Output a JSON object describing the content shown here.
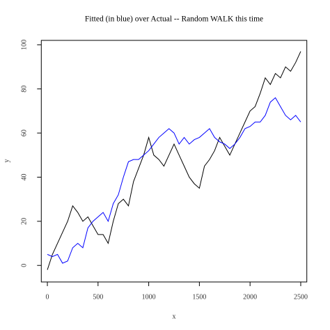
{
  "chart_data": {
    "type": "line",
    "title": "Fitted (in blue) over Actual -- Random WALK this time",
    "x_label": "x",
    "y_label": "y",
    "x": [
      0,
      50,
      100,
      150,
      200,
      250,
      300,
      350,
      400,
      450,
      500,
      550,
      600,
      650,
      700,
      750,
      800,
      850,
      900,
      950,
      1000,
      1050,
      1100,
      1150,
      1200,
      1250,
      1300,
      1350,
      1400,
      1450,
      1500,
      1550,
      1600,
      1650,
      1700,
      1750,
      1800,
      1850,
      1900,
      1950,
      2000,
      2050,
      2100,
      2150,
      2200,
      2250,
      2300,
      2350,
      2400,
      2450,
      2500
    ],
    "series": [
      {
        "color": "#000000",
        "values": [
          -2,
          5,
          10,
          15,
          20,
          27,
          24,
          20,
          22,
          18,
          14,
          14,
          10,
          20,
          28,
          30,
          27,
          38,
          44,
          50,
          58,
          50,
          48,
          45,
          50,
          55,
          50,
          45,
          40,
          37,
          35,
          45,
          48,
          52,
          58,
          54,
          50,
          55,
          60,
          65,
          70,
          72,
          78,
          85,
          82,
          87,
          85,
          90,
          88,
          92,
          97
        ]
      },
      {
        "color": "#0000ff",
        "values": [
          5,
          4,
          5,
          1,
          2,
          8,
          10,
          8,
          17,
          20,
          22,
          24,
          20,
          28,
          32,
          40,
          47,
          48,
          48,
          50,
          52,
          55,
          58,
          60,
          62,
          60,
          55,
          58,
          55,
          57,
          58,
          60,
          62,
          58,
          56,
          55,
          53,
          55,
          58,
          62,
          63,
          65,
          65,
          68,
          74,
          76,
          72,
          68,
          66,
          68,
          65
        ]
      }
    ],
    "xlim": [
      -60,
      2560
    ],
    "ylim": [
      -7.5,
      102
    ],
    "xticks": [
      0,
      500,
      1000,
      1500,
      2000,
      2500
    ],
    "yticks": [
      0,
      20,
      40,
      60,
      80,
      100
    ]
  }
}
